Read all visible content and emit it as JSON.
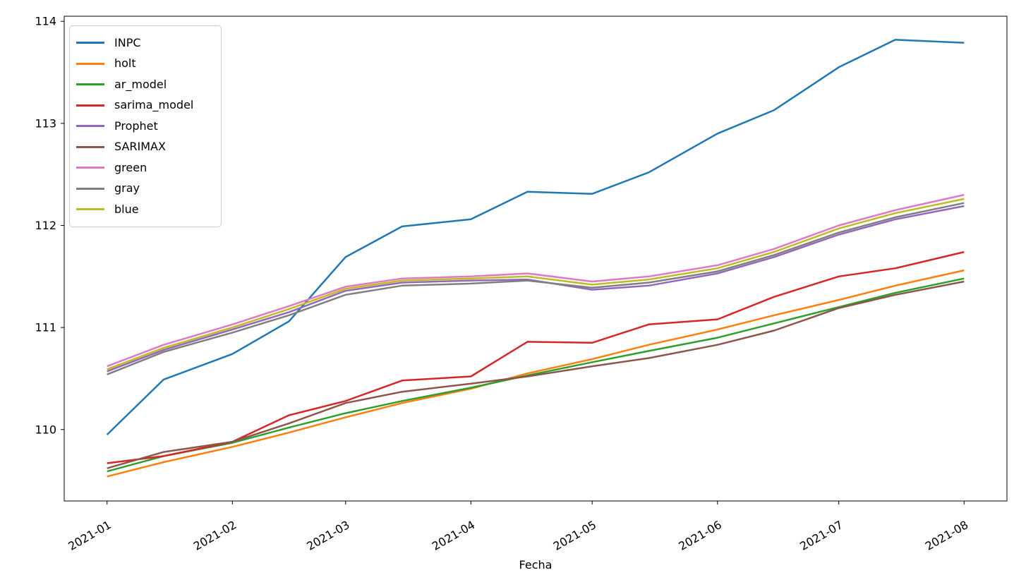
{
  "figure": {
    "xlabel": "Fecha",
    "background": "#ffffff",
    "text_color": "#000000",
    "spine_color": "#000000",
    "legend_border_color": "#cccccc"
  },
  "chart_data": {
    "type": "line",
    "title": "",
    "xlabel": "Fecha",
    "ylabel": "",
    "grid": false,
    "legend_position": "upper left",
    "x_tick_labels": [
      "2021-01",
      "2021-02",
      "2021-03",
      "2021-04",
      "2021-05",
      "2021-06",
      "2021-07",
      "2021-08"
    ],
    "y_ticks": [
      110,
      111,
      112,
      113,
      114
    ],
    "ylim": [
      109.3,
      114.05
    ],
    "xlim_days": [
      -10.6,
      222.6
    ],
    "x_dates": [
      "2021-01-01",
      "2021-01-15",
      "2021-02-01",
      "2021-02-15",
      "2021-03-01",
      "2021-03-15",
      "2021-04-01",
      "2021-04-15",
      "2021-05-01",
      "2021-05-15",
      "2021-06-01",
      "2021-06-15",
      "2021-07-01",
      "2021-07-15",
      "2021-08-01"
    ],
    "series": [
      {
        "name": "INPC",
        "color": "#1f77b4",
        "values": [
          109.95,
          110.49,
          110.74,
          111.06,
          111.69,
          111.99,
          112.06,
          112.33,
          112.31,
          112.52,
          112.9,
          113.13,
          113.55,
          113.82,
          113.79
        ]
      },
      {
        "name": "holt",
        "color": "#ff7f0e",
        "values": [
          109.54,
          109.68,
          109.83,
          109.97,
          110.12,
          110.26,
          110.4,
          110.55,
          110.69,
          110.83,
          110.98,
          111.12,
          111.27,
          111.41,
          111.56
        ]
      },
      {
        "name": "ar_model",
        "color": "#2ca02c",
        "values": [
          109.59,
          109.74,
          109.87,
          110.02,
          110.16,
          110.28,
          110.41,
          110.53,
          110.66,
          110.77,
          110.9,
          111.04,
          111.2,
          111.34,
          111.48
        ]
      },
      {
        "name": "sarima_model",
        "color": "#d62728",
        "values": [
          109.67,
          109.74,
          109.88,
          110.14,
          110.28,
          110.48,
          110.52,
          110.86,
          110.85,
          111.03,
          111.08,
          111.3,
          111.5,
          111.58,
          111.74
        ]
      },
      {
        "name": "Prophet",
        "color": "#9467bd",
        "values": [
          110.57,
          110.78,
          110.98,
          111.15,
          111.36,
          111.44,
          111.46,
          111.47,
          111.37,
          111.41,
          111.53,
          111.69,
          111.91,
          112.06,
          112.19
        ]
      },
      {
        "name": "SARIMAX",
        "color": "#8c564b",
        "values": [
          109.62,
          109.78,
          109.88,
          110.06,
          110.26,
          110.37,
          110.45,
          110.52,
          110.62,
          110.7,
          110.83,
          110.97,
          111.19,
          111.32,
          111.45
        ]
      },
      {
        "name": "green",
        "color": "#e377c2",
        "values": [
          110.62,
          110.83,
          111.03,
          111.21,
          111.4,
          111.48,
          111.5,
          111.53,
          111.45,
          111.5,
          111.61,
          111.77,
          112.0,
          112.15,
          112.3
        ]
      },
      {
        "name": "gray",
        "color": "#7f7f7f",
        "values": [
          110.54,
          110.76,
          110.95,
          111.12,
          111.32,
          111.41,
          111.43,
          111.46,
          111.39,
          111.44,
          111.55,
          111.71,
          111.93,
          112.08,
          112.22
        ]
      },
      {
        "name": "blue",
        "color": "#bcbd22",
        "values": [
          110.59,
          110.8,
          111.0,
          111.18,
          111.38,
          111.46,
          111.48,
          111.5,
          111.42,
          111.47,
          111.58,
          111.74,
          111.97,
          112.12,
          112.26
        ]
      }
    ]
  }
}
